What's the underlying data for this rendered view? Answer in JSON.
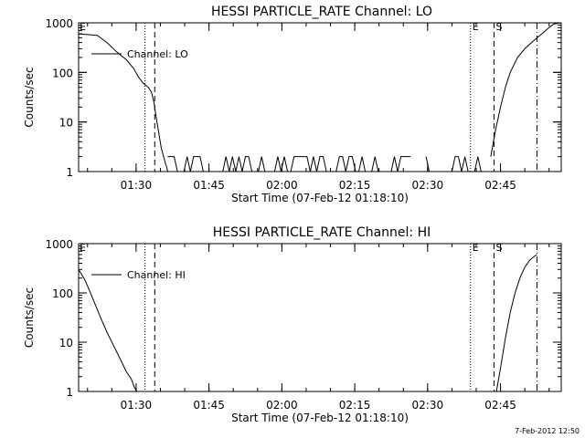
{
  "chart_data": [
    {
      "type": "line",
      "title": "HESSI PARTICLE_RATE Channel: LO",
      "xlabel": "Start Time (07-Feb-12 01:18:10)",
      "ylabel": "Counts/sec",
      "y_scale": "log",
      "ylim": [
        1,
        1000
      ],
      "y_ticks": [
        "1",
        "10",
        "100",
        "1000"
      ],
      "xlim": [
        "01:18:10",
        "02:57:30"
      ],
      "x_ticks": [
        "01:30",
        "01:45",
        "02:00",
        "02:15",
        "02:30",
        "02:45"
      ],
      "grid": false,
      "legend": {
        "position": "top-left",
        "entries": [
          "Channel: LO"
        ]
      },
      "series": [
        {
          "name": "Channel: LO",
          "x": [
            "01:18:10",
            "01:22:00",
            "01:24:00",
            "01:26:00",
            "01:28:00",
            "01:29:30",
            "01:30:30",
            "01:31:30",
            "01:32:30",
            "01:33:10",
            "01:33:40",
            "01:34:10",
            "01:34:40",
            "01:35:10",
            "01:35:40",
            "01:36:00",
            "01:36:20",
            "01:36:30"
          ],
          "y": [
            600,
            560,
            400,
            260,
            180,
            120,
            80,
            60,
            50,
            40,
            25,
            12,
            6,
            3,
            2,
            1.5,
            1.2,
            1
          ],
          "noise_segments": [
            [
              "01:36:30",
              "02:26:40"
            ],
            [
              "02:29:40",
              "02:41:10"
            ]
          ],
          "noise_levels": [
            1,
            2
          ]
        },
        {
          "x": [
            "02:43:00",
            "02:44:00",
            "02:45:00",
            "02:46:00",
            "02:47:00",
            "02:48:30",
            "02:50:00",
            "02:52:00",
            "02:53:30",
            "02:55:00",
            "02:56:00",
            "02:57:30"
          ],
          "y": [
            2,
            7,
            20,
            50,
            100,
            200,
            300,
            450,
            600,
            800,
            950,
            1000
          ]
        }
      ],
      "markers": [
        {
          "label": "E",
          "x": "01:18:10",
          "style": "text"
        },
        {
          "label": "",
          "x": "01:31:50",
          "style": "dotted"
        },
        {
          "label": "",
          "x": "01:33:50",
          "style": "dashed"
        },
        {
          "label": "E",
          "x": "02:38:50",
          "style": "dotted"
        },
        {
          "label": "S",
          "x": "02:43:40",
          "style": "dashed"
        },
        {
          "label": "",
          "x": "02:52:30",
          "style": "dashdot"
        }
      ]
    },
    {
      "type": "line",
      "title": "HESSI PARTICLE_RATE Channel: HI",
      "xlabel": "Start Time (07-Feb-12 01:18:10)",
      "ylabel": "Counts/sec",
      "y_scale": "log",
      "ylim": [
        1,
        1000
      ],
      "y_ticks": [
        "1",
        "10",
        "100",
        "1000"
      ],
      "xlim": [
        "01:18:10",
        "02:57:30"
      ],
      "x_ticks": [
        "01:30",
        "01:45",
        "02:00",
        "02:15",
        "02:30",
        "02:45"
      ],
      "grid": false,
      "legend": {
        "position": "top-left",
        "entries": [
          "Channel: HI"
        ]
      },
      "series": [
        {
          "name": "Channel: HI",
          "x": [
            "01:18:10",
            "01:19:30",
            "01:21:00",
            "01:22:30",
            "01:24:00",
            "01:25:30",
            "01:27:00",
            "01:28:00",
            "01:29:00",
            "01:29:40",
            "01:30:10"
          ],
          "y": [
            300,
            180,
            80,
            35,
            16,
            8,
            4,
            2.5,
            1.8,
            1.2,
            1
          ]
        },
        {
          "x": [
            "02:44:10",
            "02:45:00",
            "02:46:00",
            "02:47:00",
            "02:48:00",
            "02:49:00",
            "02:50:00",
            "02:51:00",
            "02:52:00",
            "02:52:30"
          ],
          "y": [
            1,
            3,
            12,
            40,
            100,
            200,
            330,
            460,
            560,
            600
          ]
        }
      ],
      "markers": [
        {
          "label": "E",
          "x": "01:18:10",
          "style": "text"
        },
        {
          "label": "",
          "x": "01:31:50",
          "style": "dotted"
        },
        {
          "label": "",
          "x": "01:33:50",
          "style": "dashed"
        },
        {
          "label": "E",
          "x": "02:38:50",
          "style": "dotted"
        },
        {
          "label": "S",
          "x": "02:43:40",
          "style": "dashed"
        },
        {
          "label": "",
          "x": "02:52:30",
          "style": "dashdot"
        }
      ]
    }
  ],
  "footer": {
    "timestamp": "7-Feb-2012 12:50"
  }
}
